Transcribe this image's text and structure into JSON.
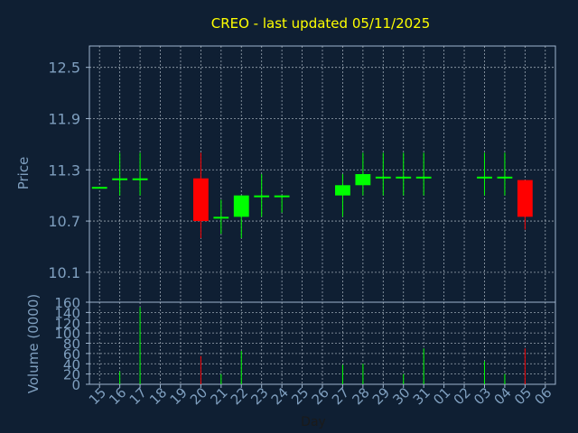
{
  "title": "CREO - last updated 05/11/2025",
  "colors": {
    "background": "#0f1f33",
    "panel": "#0f1f33",
    "axis": "#9fb6cf",
    "grid": "#c8d2dc",
    "title": "#ffff00",
    "label": "#7f9fbf",
    "up": "#00ff00",
    "down": "#ff0000"
  },
  "chart_data": [
    {
      "type": "candlestick",
      "ylabel": "Price",
      "ylim": [
        9.75,
        12.75
      ],
      "yticks": [
        "12.5",
        "11.9",
        "11.3",
        "10.7",
        "10.1"
      ],
      "ytick_values": [
        12.5,
        11.9,
        11.3,
        10.7,
        10.1
      ],
      "categories": [
        "15",
        "16",
        "17",
        "18",
        "19",
        "20",
        "21",
        "22",
        "23",
        "24",
        "25",
        "26",
        "27",
        "28",
        "29",
        "30",
        "31",
        "01",
        "02",
        "03",
        "04",
        "05",
        "06"
      ],
      "candles": [
        {
          "x": "15",
          "open": 11.1,
          "high": 11.1,
          "low": 11.1,
          "close": 11.1,
          "dir": "up"
        },
        {
          "x": "16",
          "open": 11.2,
          "high": 11.5,
          "low": 11.0,
          "close": 11.2,
          "dir": "up"
        },
        {
          "x": "17",
          "open": 11.2,
          "high": 11.5,
          "low": 11.0,
          "close": 11.2,
          "dir": "up"
        },
        {
          "x": "20",
          "open": 11.2,
          "high": 11.5,
          "low": 10.5,
          "close": 10.7,
          "dir": "down"
        },
        {
          "x": "21",
          "open": 10.75,
          "high": 10.95,
          "low": 10.55,
          "close": 10.75,
          "dir": "up"
        },
        {
          "x": "22",
          "open": 10.75,
          "high": 11.0,
          "low": 10.5,
          "close": 11.0,
          "dir": "up"
        },
        {
          "x": "23",
          "open": 11.0,
          "high": 11.25,
          "low": 10.75,
          "close": 11.0,
          "dir": "up"
        },
        {
          "x": "24",
          "open": 11.0,
          "high": 11.0,
          "low": 10.8,
          "close": 11.0,
          "dir": "up"
        },
        {
          "x": "27",
          "open": 11.0,
          "high": 11.25,
          "low": 10.75,
          "close": 11.12,
          "dir": "up"
        },
        {
          "x": "28",
          "open": 11.12,
          "high": 11.5,
          "low": 11.0,
          "close": 11.25,
          "dir": "up"
        },
        {
          "x": "29",
          "open": 11.22,
          "high": 11.5,
          "low": 11.0,
          "close": 11.22,
          "dir": "up"
        },
        {
          "x": "30",
          "open": 11.22,
          "high": 11.5,
          "low": 11.0,
          "close": 11.22,
          "dir": "up"
        },
        {
          "x": "31",
          "open": 11.22,
          "high": 11.5,
          "low": 11.0,
          "close": 11.22,
          "dir": "up"
        },
        {
          "x": "03",
          "open": 11.22,
          "high": 11.5,
          "low": 11.0,
          "close": 11.22,
          "dir": "up"
        },
        {
          "x": "04",
          "open": 11.22,
          "high": 11.5,
          "low": 11.0,
          "close": 11.22,
          "dir": "up"
        },
        {
          "x": "05",
          "open": 11.18,
          "high": 11.18,
          "low": 10.6,
          "close": 10.75,
          "dir": "down"
        }
      ]
    },
    {
      "type": "bar",
      "ylabel": "Volume (0000)",
      "ylim": [
        0,
        160
      ],
      "yticks": [
        "160",
        "140",
        "120",
        "100",
        "80",
        "60",
        "40",
        "20",
        "0"
      ],
      "ytick_values": [
        160,
        140,
        120,
        100,
        80,
        60,
        40,
        20,
        0
      ],
      "xlabel": "Day",
      "categories": [
        "15",
        "16",
        "17",
        "18",
        "19",
        "20",
        "21",
        "22",
        "23",
        "24",
        "25",
        "26",
        "27",
        "28",
        "29",
        "30",
        "31",
        "01",
        "02",
        "03",
        "04",
        "05",
        "06"
      ],
      "bars": [
        {
          "x": "16",
          "value": 25,
          "dir": "up"
        },
        {
          "x": "17",
          "value": 150,
          "dir": "up"
        },
        {
          "x": "20",
          "value": 55,
          "dir": "down"
        },
        {
          "x": "21",
          "value": 20,
          "dir": "up"
        },
        {
          "x": "22",
          "value": 65,
          "dir": "up"
        },
        {
          "x": "27",
          "value": 38,
          "dir": "up"
        },
        {
          "x": "28",
          "value": 40,
          "dir": "up"
        },
        {
          "x": "30",
          "value": 20,
          "dir": "up"
        },
        {
          "x": "31",
          "value": 70,
          "dir": "up"
        },
        {
          "x": "03",
          "value": 45,
          "dir": "up"
        },
        {
          "x": "04",
          "value": 20,
          "dir": "up"
        },
        {
          "x": "05",
          "value": 70,
          "dir": "down"
        }
      ]
    }
  ]
}
